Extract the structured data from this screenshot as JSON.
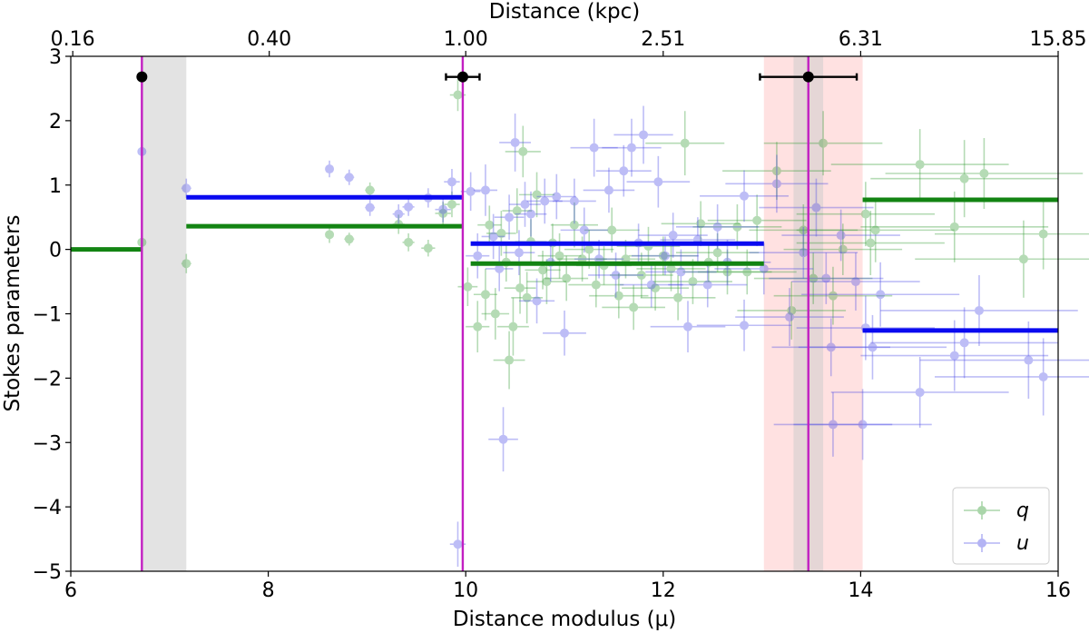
{
  "chart_data": {
    "type": "scatter",
    "title": "",
    "xlabel": "Distance modulus (μ)",
    "ylabel": "Stokes parameters",
    "top_xlabel": "Distance (kpc)",
    "xlim": [
      6,
      16
    ],
    "ylim": [
      -5,
      3
    ],
    "x_ticks": [
      6,
      8,
      10,
      12,
      14,
      16
    ],
    "y_ticks": [
      -5,
      -4,
      -3,
      -2,
      -1,
      0,
      1,
      2,
      3
    ],
    "x_tick_labels": [
      "6",
      "8",
      "10",
      "12",
      "14",
      "16"
    ],
    "y_tick_labels": [
      "−5",
      "−4",
      "−3",
      "−2",
      "−1",
      "0",
      "1",
      "2",
      "3"
    ],
    "top_ticks": [
      {
        "mu": 6.02,
        "label": "0.16"
      },
      {
        "mu": 8.01,
        "label": "0.40"
      },
      {
        "mu": 10.0,
        "label": "1.00"
      },
      {
        "mu": 12.0,
        "label": "2.51"
      },
      {
        "mu": 14.0,
        "label": "6.31"
      },
      {
        "mu": 16.0,
        "label": "15.85"
      }
    ],
    "legend": {
      "placement": "lower-right",
      "entries": [
        {
          "label": "q",
          "color": "#2e9a2e"
        },
        {
          "label": "u",
          "color": "#4646e6"
        }
      ]
    },
    "colors": {
      "q": "#2e9a2e",
      "u": "#4646e6",
      "q_line": "#138413",
      "u_line": "#0a0af0",
      "vline": "#c21fc2",
      "grey_band": "#cccccc",
      "pink_band": "#ffb3b3"
    },
    "bands": [
      {
        "x0": 6.72,
        "x1": 7.17,
        "color": "grey",
        "alpha": 0.55
      },
      {
        "x0": 13.02,
        "x1": 14.02,
        "color": "pink",
        "alpha": 0.4
      },
      {
        "x0": 13.32,
        "x1": 13.62,
        "color": "grey",
        "alpha": 0.5
      }
    ],
    "clouds": [
      {
        "mu": 6.72,
        "mu_err": 0.0,
        "y": 2.68
      },
      {
        "mu": 9.97,
        "mu_err": 0.17,
        "y": 2.68
      },
      {
        "mu": 13.47,
        "mu_err": 0.49,
        "y": 2.68
      }
    ],
    "steps": {
      "q": [
        {
          "x0": 6.0,
          "x1": 6.72,
          "y": 0.0
        },
        {
          "x0": 7.17,
          "x1": 9.97,
          "y": 0.36
        },
        {
          "x0": 10.05,
          "x1": 13.02,
          "y": -0.22
        },
        {
          "x0": 14.02,
          "x1": 16.0,
          "y": 0.77
        }
      ],
      "u": [
        {
          "x0": 7.17,
          "x1": 9.97,
          "y": 0.81
        },
        {
          "x0": 10.05,
          "x1": 13.02,
          "y": 0.09
        },
        {
          "x0": 14.02,
          "x1": 16.0,
          "y": -1.26
        }
      ]
    },
    "series": [
      {
        "name": "q",
        "points": [
          [
            6.72,
            0.11,
            0.03,
            0.12
          ],
          [
            7.17,
            -0.22,
            0.05,
            0.15
          ],
          [
            8.62,
            0.23,
            0.04,
            0.13
          ],
          [
            8.82,
            0.16,
            0.05,
            0.1
          ],
          [
            9.03,
            0.92,
            0.05,
            0.12
          ],
          [
            9.32,
            0.39,
            0.06,
            0.15
          ],
          [
            9.42,
            0.11,
            0.06,
            0.14
          ],
          [
            9.62,
            0.02,
            0.07,
            0.13
          ],
          [
            9.77,
            0.56,
            0.08,
            0.18
          ],
          [
            9.86,
            0.7,
            0.08,
            0.2
          ],
          [
            9.92,
            2.4,
            0.08,
            0.25
          ],
          [
            10.02,
            -0.58,
            0.1,
            0.3
          ],
          [
            10.12,
            -1.2,
            0.12,
            0.4
          ],
          [
            10.2,
            -0.7,
            0.12,
            0.4
          ],
          [
            10.24,
            0.38,
            0.12,
            0.3
          ],
          [
            10.3,
            -1.0,
            0.14,
            0.4
          ],
          [
            10.36,
            0.25,
            0.15,
            0.35
          ],
          [
            10.41,
            -0.2,
            0.15,
            0.3
          ],
          [
            10.44,
            -1.72,
            0.16,
            0.45
          ],
          [
            10.48,
            -1.2,
            0.16,
            0.45
          ],
          [
            10.52,
            0.6,
            0.15,
            0.35
          ],
          [
            10.55,
            -0.6,
            0.16,
            0.4
          ],
          [
            10.58,
            1.52,
            0.18,
            0.4
          ],
          [
            10.62,
            -0.75,
            0.16,
            0.4
          ],
          [
            10.66,
            0.12,
            0.16,
            0.35
          ],
          [
            10.72,
            0.85,
            0.18,
            0.35
          ],
          [
            10.78,
            -0.32,
            0.18,
            0.3
          ],
          [
            10.82,
            -0.5,
            0.2,
            0.35
          ],
          [
            10.88,
            0.1,
            0.2,
            0.3
          ],
          [
            10.95,
            -0.1,
            0.22,
            0.35
          ],
          [
            11.02,
            -0.45,
            0.22,
            0.35
          ],
          [
            11.1,
            0.38,
            0.24,
            0.35
          ],
          [
            11.18,
            -0.15,
            0.25,
            0.35
          ],
          [
            11.25,
            0.0,
            0.25,
            0.3
          ],
          [
            11.32,
            -0.55,
            0.28,
            0.35
          ],
          [
            11.4,
            -0.25,
            0.28,
            0.3
          ],
          [
            11.48,
            0.3,
            0.28,
            0.35
          ],
          [
            11.55,
            -0.72,
            0.3,
            0.35
          ],
          [
            11.62,
            -0.15,
            0.3,
            0.3
          ],
          [
            11.7,
            -0.9,
            0.32,
            0.35
          ],
          [
            11.78,
            -0.4,
            0.32,
            0.35
          ],
          [
            11.85,
            0.05,
            0.32,
            0.3
          ],
          [
            11.92,
            -0.6,
            0.34,
            0.35
          ],
          [
            12.0,
            -0.1,
            0.35,
            0.3
          ],
          [
            12.08,
            -0.3,
            0.35,
            0.35
          ],
          [
            12.15,
            -0.75,
            0.38,
            0.35
          ],
          [
            12.22,
            1.65,
            0.4,
            0.5
          ],
          [
            12.3,
            -0.5,
            0.4,
            0.35
          ],
          [
            12.38,
            0.4,
            0.4,
            0.35
          ],
          [
            12.46,
            -0.2,
            0.42,
            0.3
          ],
          [
            12.55,
            -0.05,
            0.42,
            0.3
          ],
          [
            12.65,
            -0.35,
            0.45,
            0.35
          ],
          [
            12.75,
            0.35,
            0.45,
            0.35
          ],
          [
            12.85,
            -0.35,
            0.5,
            0.35
          ],
          [
            12.95,
            0.45,
            0.5,
            0.4
          ],
          [
            13.15,
            1.22,
            0.55,
            0.45
          ],
          [
            13.3,
            -0.95,
            0.55,
            0.45
          ],
          [
            13.42,
            0.3,
            0.55,
            0.4
          ],
          [
            13.52,
            -0.45,
            0.6,
            0.4
          ],
          [
            13.62,
            1.65,
            0.6,
            0.5
          ],
          [
            13.72,
            -0.72,
            0.6,
            0.45
          ],
          [
            13.82,
            0.0,
            0.6,
            0.4
          ],
          [
            14.05,
            0.55,
            0.7,
            0.5
          ],
          [
            14.1,
            0.1,
            0.75,
            0.5
          ],
          [
            14.15,
            0.3,
            0.8,
            0.5
          ],
          [
            14.6,
            1.32,
            0.9,
            0.55
          ],
          [
            14.95,
            0.35,
            0.95,
            0.55
          ],
          [
            15.05,
            1.1,
            0.95,
            0.6
          ],
          [
            15.25,
            1.18,
            1.0,
            0.55
          ],
          [
            15.65,
            -0.15,
            1.1,
            0.6
          ],
          [
            15.85,
            0.24,
            1.1,
            0.55
          ]
        ]
      },
      {
        "name": "u",
        "points": [
          [
            6.72,
            1.52,
            0.03,
            0.12
          ],
          [
            7.17,
            0.95,
            0.05,
            0.15
          ],
          [
            8.62,
            1.25,
            0.04,
            0.13
          ],
          [
            8.82,
            1.12,
            0.05,
            0.12
          ],
          [
            9.03,
            0.65,
            0.05,
            0.13
          ],
          [
            9.32,
            0.55,
            0.06,
            0.15
          ],
          [
            9.42,
            0.66,
            0.06,
            0.14
          ],
          [
            9.62,
            0.8,
            0.07,
            0.15
          ],
          [
            9.77,
            0.62,
            0.08,
            0.2
          ],
          [
            9.86,
            1.05,
            0.08,
            0.2
          ],
          [
            9.92,
            -4.58,
            0.08,
            0.35
          ],
          [
            10.05,
            0.9,
            0.1,
            0.3
          ],
          [
            10.12,
            -0.1,
            0.12,
            0.35
          ],
          [
            10.2,
            0.92,
            0.12,
            0.4
          ],
          [
            10.28,
            0.2,
            0.12,
            0.35
          ],
          [
            10.34,
            -0.3,
            0.14,
            0.35
          ],
          [
            10.38,
            -2.95,
            0.15,
            0.5
          ],
          [
            10.44,
            0.5,
            0.15,
            0.35
          ],
          [
            10.5,
            1.66,
            0.16,
            0.45
          ],
          [
            10.54,
            -0.05,
            0.16,
            0.35
          ],
          [
            10.6,
            0.7,
            0.16,
            0.35
          ],
          [
            10.66,
            0.55,
            0.16,
            0.35
          ],
          [
            10.72,
            -0.8,
            0.18,
            0.35
          ],
          [
            10.8,
            0.75,
            0.18,
            0.35
          ],
          [
            10.86,
            -0.2,
            0.2,
            0.3
          ],
          [
            10.92,
            0.82,
            0.2,
            0.35
          ],
          [
            11.0,
            -1.3,
            0.22,
            0.35
          ],
          [
            11.1,
            0.75,
            0.22,
            0.35
          ],
          [
            11.2,
            0.3,
            0.24,
            0.35
          ],
          [
            11.3,
            1.58,
            0.24,
            0.45
          ],
          [
            11.35,
            -0.15,
            0.25,
            0.3
          ],
          [
            11.45,
            0.92,
            0.26,
            0.35
          ],
          [
            11.52,
            -0.4,
            0.28,
            0.35
          ],
          [
            11.6,
            1.22,
            0.28,
            0.4
          ],
          [
            11.68,
            1.58,
            0.3,
            0.45
          ],
          [
            11.75,
            0.1,
            0.3,
            0.3
          ],
          [
            11.8,
            1.78,
            0.3,
            0.45
          ],
          [
            11.88,
            -0.55,
            0.32,
            0.35
          ],
          [
            11.95,
            1.05,
            0.32,
            0.4
          ],
          [
            12.02,
            -0.1,
            0.34,
            0.3
          ],
          [
            12.1,
            0.22,
            0.35,
            0.35
          ],
          [
            12.18,
            -0.35,
            0.36,
            0.35
          ],
          [
            12.25,
            -1.2,
            0.38,
            0.4
          ],
          [
            12.35,
            0.15,
            0.38,
            0.35
          ],
          [
            12.45,
            -0.55,
            0.4,
            0.35
          ],
          [
            12.55,
            0.35,
            0.42,
            0.35
          ],
          [
            12.65,
            -0.2,
            0.44,
            0.35
          ],
          [
            12.82,
            0.83,
            0.45,
            0.4
          ],
          [
            12.82,
            -1.18,
            0.48,
            0.4
          ],
          [
            13.02,
            -0.3,
            0.5,
            0.4
          ],
          [
            13.15,
            1.02,
            0.52,
            0.45
          ],
          [
            13.28,
            -1.05,
            0.55,
            0.45
          ],
          [
            13.42,
            -0.05,
            0.55,
            0.4
          ],
          [
            13.55,
            0.65,
            0.58,
            0.45
          ],
          [
            13.65,
            -0.45,
            0.58,
            0.4
          ],
          [
            13.7,
            -1.52,
            0.6,
            0.45
          ],
          [
            13.72,
            -2.72,
            0.6,
            0.5
          ],
          [
            13.8,
            0.22,
            0.6,
            0.4
          ],
          [
            13.95,
            -0.5,
            0.65,
            0.45
          ],
          [
            14.05,
            -1.22,
            0.7,
            0.5
          ],
          [
            14.02,
            -2.72,
            0.7,
            0.55
          ],
          [
            14.12,
            -1.52,
            0.75,
            0.5
          ],
          [
            14.2,
            -0.7,
            0.8,
            0.5
          ],
          [
            14.6,
            -2.22,
            0.9,
            0.55
          ],
          [
            14.95,
            -1.65,
            0.95,
            0.55
          ],
          [
            15.2,
            -0.95,
            1.0,
            0.55
          ],
          [
            15.7,
            -1.72,
            1.1,
            0.6
          ],
          [
            15.85,
            -1.98,
            1.1,
            0.6
          ],
          [
            15.05,
            -1.45,
            0.95,
            0.55
          ]
        ]
      }
    ]
  }
}
